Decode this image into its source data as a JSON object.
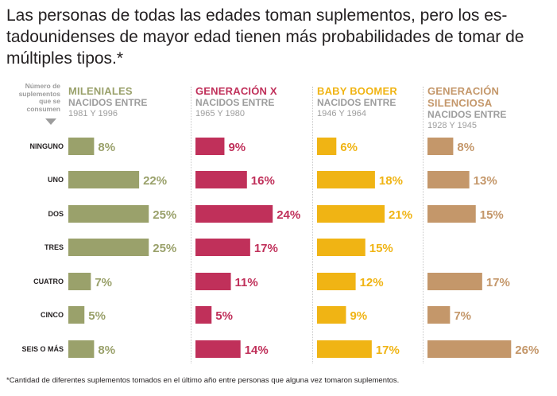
{
  "title": "Las personas de todas las edades toman suplementos, pero los es-tadounidenses de mayor edad tienen más probabilidades de tomar de múltiples tipos.*",
  "y_legend": "Número de suplementos que se consumen",
  "footnote": "*Cantidad de diferentes suplementos tomados en el último año entre personas que alguna vez tomaron suplementos.",
  "chart_data": {
    "type": "bar",
    "orientation": "horizontal",
    "categories": [
      "NINGUNO",
      "UNO",
      "DOS",
      "TRES",
      "CUATRO",
      "CINCO",
      "SEIS O MÁS"
    ],
    "series": [
      {
        "name": "MILENIALES",
        "subtitle": "NACIDOS ENTRE",
        "years": "1981 Y 1996",
        "color": "#9aa16b",
        "values": [
          8,
          22,
          25,
          25,
          7,
          5,
          8
        ],
        "labels": [
          "8%",
          "22%",
          "25%",
          "25%",
          "7%",
          "5%",
          "8%"
        ]
      },
      {
        "name": "GENERACIÓN X",
        "subtitle": "NACIDOS ENTRE",
        "years": "1965 Y 1980",
        "color": "#c0305a",
        "values": [
          9,
          16,
          24,
          17,
          11,
          5,
          14
        ],
        "labels": [
          "9%",
          "16%",
          "24%",
          "17%",
          "11%",
          "5%",
          "14%"
        ]
      },
      {
        "name": "BABY BOOMER",
        "subtitle": "NACIDOS ENTRE",
        "years": "1946 Y 1964",
        "color": "#f0b414",
        "values": [
          6,
          18,
          21,
          15,
          12,
          9,
          17
        ],
        "labels": [
          "6%",
          "18%",
          "21%",
          "15%",
          "12%",
          "9%",
          "17%"
        ]
      },
      {
        "name": "GENERACIÓN\nSILENCIOSA",
        "subtitle": "NACIDOS ENTRE",
        "years": "1928 Y 1945",
        "color": "#c4976a",
        "values": [
          8,
          13,
          15,
          null,
          17,
          7,
          26
        ],
        "labels": [
          "8%",
          "13%",
          "15%",
          "",
          "17%",
          "7%",
          "26%"
        ]
      }
    ]
  }
}
